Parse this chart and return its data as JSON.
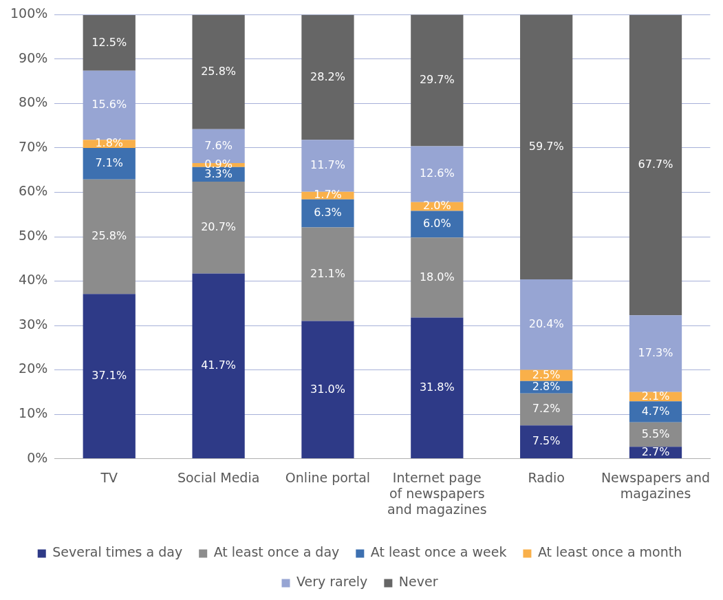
{
  "chart_data": {
    "type": "bar",
    "stacked": true,
    "categories": [
      "TV",
      "Social Media",
      "Online portal",
      "Internet page of newspapers and magazines",
      "Radio",
      "Newspapers and magazines"
    ],
    "ylim": [
      0,
      100
    ],
    "yticks": [
      {
        "value": 0,
        "label": "0%"
      },
      {
        "value": 10,
        "label": "10%"
      },
      {
        "value": 20,
        "label": "20%"
      },
      {
        "value": 30,
        "label": "30%"
      },
      {
        "value": 40,
        "label": "40%"
      },
      {
        "value": 50,
        "label": "50%"
      },
      {
        "value": 60,
        "label": "60%"
      },
      {
        "value": 70,
        "label": "70%"
      },
      {
        "value": 80,
        "label": "80%"
      },
      {
        "value": 90,
        "label": "90%"
      },
      {
        "value": 100,
        "label": "100%"
      }
    ],
    "grid": "y",
    "legend": "bottom",
    "series": [
      {
        "name": "Several times a day",
        "color": "#2e3a87",
        "values": [
          37.1,
          41.7,
          31.0,
          31.8,
          7.5,
          2.7
        ],
        "value_labels": [
          "37.1%",
          "41.7%",
          "31.0%",
          "31.8%",
          "7.5%",
          "2.7%"
        ]
      },
      {
        "name": "At least once a day",
        "color": "#8c8c8c",
        "values": [
          25.8,
          20.7,
          21.1,
          18.0,
          7.2,
          5.5
        ],
        "value_labels": [
          "25.8%",
          "20.7%",
          "21.1%",
          "18.0%",
          "7.2%",
          "5.5%"
        ]
      },
      {
        "name": "At least once a week",
        "color": "#3d70b0",
        "values": [
          7.1,
          3.3,
          6.3,
          6.0,
          2.8,
          4.7
        ],
        "value_labels": [
          "7.1%",
          "3.3%",
          "6.3%",
          "6.0%",
          "2.8%",
          "4.7%"
        ]
      },
      {
        "name": "At least once a month",
        "color": "#f9b04a",
        "values": [
          1.8,
          0.9,
          1.7,
          2.0,
          2.5,
          2.1
        ],
        "value_labels": [
          "1.8%",
          "0.9%",
          "1.7%",
          "2.0%",
          "2.5%",
          "2.1%"
        ]
      },
      {
        "name": "Very rarely",
        "color": "#97a5d3",
        "values": [
          15.6,
          7.6,
          11.7,
          12.6,
          20.4,
          17.3
        ],
        "value_labels": [
          "15.6%",
          "7.6%",
          "11.7%",
          "12.6%",
          "20.4%",
          "17.3%"
        ]
      },
      {
        "name": "Never",
        "color": "#666666",
        "values": [
          12.5,
          25.8,
          28.2,
          29.7,
          59.7,
          67.7
        ],
        "value_labels": [
          "12.5%",
          "25.8%",
          "28.2%",
          "29.7%",
          "59.7%",
          "67.7%"
        ]
      }
    ]
  }
}
